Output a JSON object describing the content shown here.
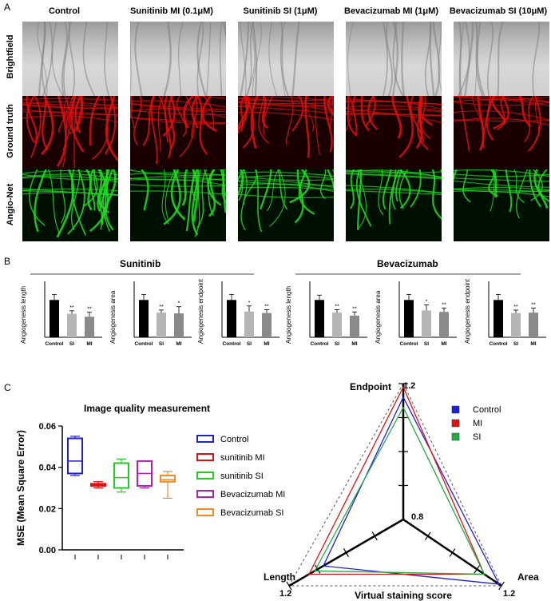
{
  "panels": {
    "a": "A",
    "b": "B",
    "c": "C"
  },
  "panelA": {
    "columns": [
      "Control",
      "Sunitinib MI (0.1μM)",
      "Sunitinib SI (1μM)",
      "Bevacizumab MI (1μM)",
      "Bevacizumab SI (10μM)"
    ],
    "rows": [
      "Brightfield",
      "Ground truth",
      "Angio-Net"
    ],
    "colors": {
      "ground_truth": "#e01010",
      "angio_net": "#22dd22"
    }
  },
  "panelB": {
    "group_titles": [
      "Sunitinib",
      "Bevacizumab"
    ],
    "subplots": [
      {
        "ylabel": "Angiogenesis length",
        "categories": [
          "Control",
          "SI",
          "MI"
        ],
        "values": [
          1.0,
          0.63,
          0.55
        ],
        "errors": [
          0.15,
          0.08,
          0.12
        ],
        "sig": [
          "",
          "**",
          "**"
        ]
      },
      {
        "ylabel": "Angiogenesis area",
        "categories": [
          "Control",
          "SI",
          "MI"
        ],
        "values": [
          1.0,
          0.66,
          0.64
        ],
        "errors": [
          0.15,
          0.07,
          0.18
        ],
        "sig": [
          "",
          "**",
          "*"
        ]
      },
      {
        "ylabel": "Angiogenesis endpoint",
        "categories": [
          "Control",
          "SI",
          "MI"
        ],
        "values": [
          1.0,
          0.69,
          0.65
        ],
        "errors": [
          0.15,
          0.15,
          0.09
        ],
        "sig": [
          "",
          "*",
          "**"
        ]
      },
      {
        "ylabel": "Angiogenesis length",
        "categories": [
          "Control",
          "SI",
          "MI"
        ],
        "values": [
          1.0,
          0.66,
          0.58
        ],
        "errors": [
          0.13,
          0.08,
          0.1
        ],
        "sig": [
          "",
          "**",
          "**"
        ]
      },
      {
        "ylabel": "Angiogenesis area",
        "categories": [
          "Control",
          "SI",
          "MI"
        ],
        "values": [
          1.0,
          0.72,
          0.68
        ],
        "errors": [
          0.15,
          0.15,
          0.1
        ],
        "sig": [
          "",
          "*",
          "**"
        ]
      },
      {
        "ylabel": "Angiogenesis endpoint",
        "categories": [
          "Control",
          "SI",
          "MI"
        ],
        "values": [
          1.0,
          0.65,
          0.66
        ],
        "errors": [
          0.15,
          0.08,
          0.12
        ],
        "sig": [
          "",
          "**",
          "**"
        ]
      }
    ]
  },
  "chart_data": [
    {
      "type": "box",
      "title": "Image quality  measurement",
      "ylabel": "MSE (Mean Square Error)",
      "ylim": [
        0,
        0.06
      ],
      "yticks": [
        "0.00",
        "0.02",
        "0.04",
        "0.06"
      ],
      "series": [
        {
          "name": "Control",
          "color": "#1f1fd6",
          "min": 0.036,
          "q1": 0.037,
          "median": 0.043,
          "q3": 0.054,
          "max": 0.055
        },
        {
          "name": "sunitinib MI",
          "color": "#e01010",
          "min": 0.03,
          "q1": 0.031,
          "median": 0.0315,
          "q3": 0.032,
          "max": 0.033
        },
        {
          "name": "sunitinib SI",
          "color": "#22cc22",
          "min": 0.028,
          "q1": 0.03,
          "median": 0.035,
          "q3": 0.042,
          "max": 0.044
        },
        {
          "name": "Bevacizumab MI",
          "color": "#b020b0",
          "min": 0.03,
          "q1": 0.031,
          "median": 0.037,
          "q3": 0.043,
          "max": 0.043
        },
        {
          "name": "Bevacizumab SI",
          "color": "#f08a2a",
          "min": 0.025,
          "q1": 0.033,
          "median": 0.034,
          "q3": 0.036,
          "max": 0.038
        }
      ]
    },
    {
      "type": "radar",
      "axes": [
        "Endpoint",
        "Length",
        "Area"
      ],
      "axis_max_labels": [
        "1.2",
        "1.2",
        "1.2"
      ],
      "center_label": "0.8",
      "xlabel": "Virtual staining score",
      "range": [
        0.8,
        1.2
      ],
      "series": [
        {
          "name": "Control",
          "color": "#1f1fd6",
          "values": [
            1.16,
            1.08,
            1.19
          ]
        },
        {
          "name": "MI",
          "color": "#e01010",
          "values": [
            1.19,
            1.13,
            1.13
          ]
        },
        {
          "name": "SI",
          "color": "#22aa44",
          "values": [
            1.13,
            1.11,
            1.13
          ]
        }
      ]
    }
  ]
}
